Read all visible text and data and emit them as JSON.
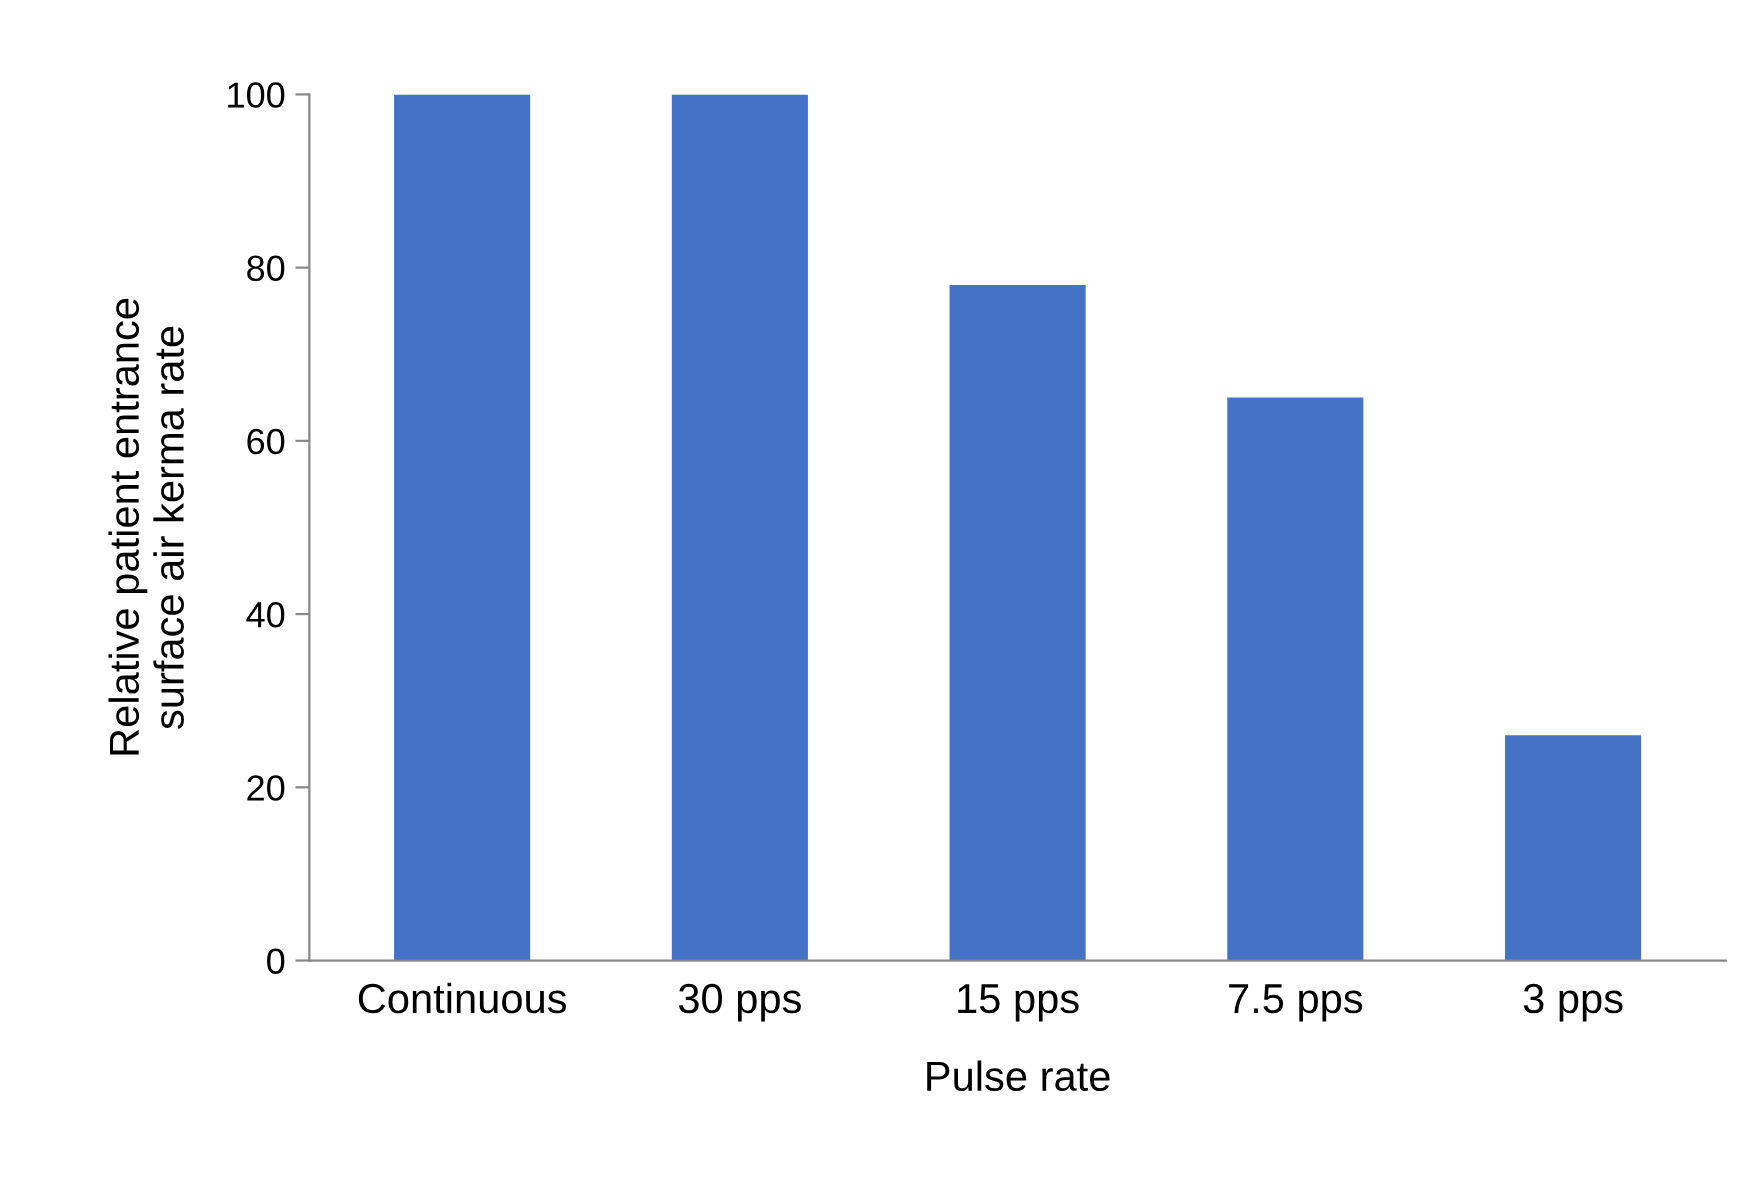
{
  "chart_data": {
    "type": "bar",
    "xlabel": "Pulse rate",
    "ylabel": "Relative patient entrance\nsurface air kerma rate",
    "categories": [
      "Continuous",
      "30 pps",
      "15 pps",
      "7.5 pps",
      "3 pps"
    ],
    "values": [
      100,
      100,
      78,
      65,
      26
    ],
    "color": "#4472c4",
    "ylim": [
      0,
      100
    ],
    "yticks": [
      0,
      20,
      40,
      60,
      80,
      100
    ],
    "grid": false,
    "legend": false
  }
}
